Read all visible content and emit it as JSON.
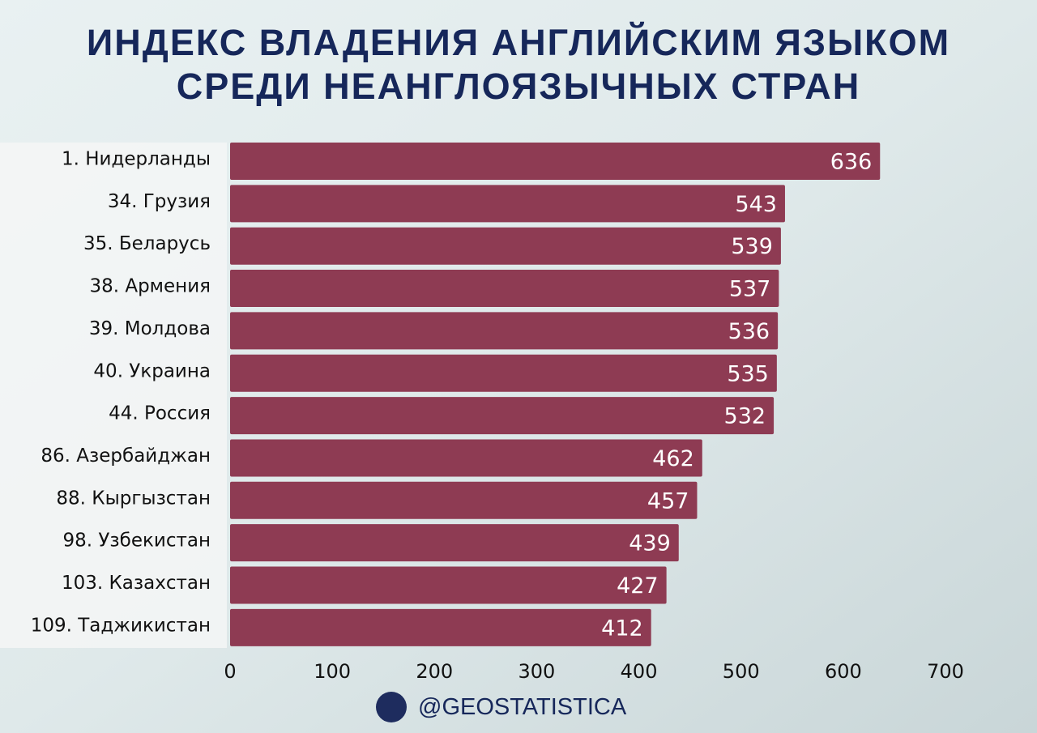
{
  "chart_data": {
    "type": "bar",
    "orientation": "horizontal",
    "title": "ИНДЕКС ВЛАДЕНИЯ АНГЛИЙСКИМ ЯЗЫКОМ СРЕДИ НЕАНГЛОЯЗЫЧНЫХ СТРАН",
    "categories": [
      "1. Нидерланды",
      "34. Грузия",
      "35. Беларусь",
      "38. Армения",
      "39. Молдова",
      "40. Украина",
      "44. Россия",
      "86. Азербайджан",
      "88. Кыргызстан",
      "98. Узбекистан",
      "103. Казахстан",
      "109. Таджикистан"
    ],
    "values": [
      636,
      543,
      539,
      537,
      536,
      535,
      532,
      462,
      457,
      439,
      427,
      412
    ],
    "color": "#8e3b53",
    "xlim": [
      0,
      700
    ],
    "xticks": [
      0,
      100,
      200,
      300,
      400,
      500,
      600,
      700
    ],
    "grid": false,
    "source": "@GEOSTATISTICA"
  }
}
